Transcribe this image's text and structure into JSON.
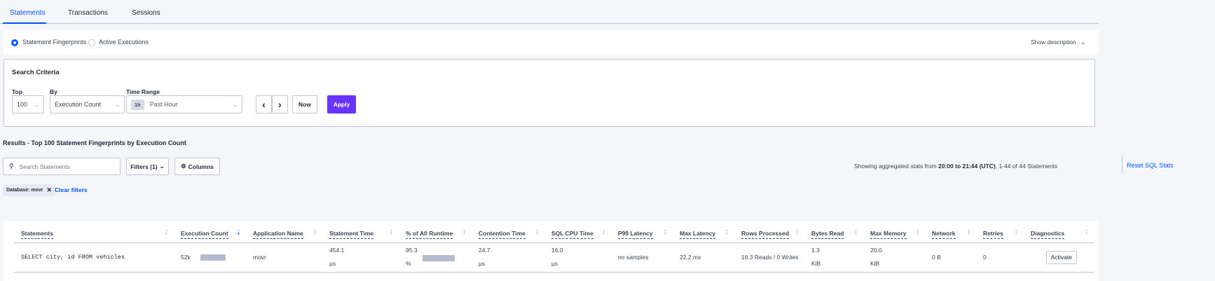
{
  "tabs": [
    {
      "label": "Statements",
      "active": true
    },
    {
      "label": "Transactions"
    },
    {
      "label": "Sessions"
    }
  ],
  "mode": {
    "options": [
      "Statement Fingerprints",
      "Active Executions"
    ],
    "selected": "Statement Fingerprints",
    "show_description": "Show description"
  },
  "criteria": {
    "title": "Search Criteria",
    "top_label": "Top",
    "top_value": "100",
    "by_label": "By",
    "by_value": "Execution Count",
    "time_label": "Time Range",
    "time_badge": "1h",
    "time_value": "Past Hour",
    "now": "Now",
    "apply": "Apply"
  },
  "results": {
    "title": "Results - Top 100 Statement Fingerprints by Execution Count",
    "search_placeholder": "Search Statements",
    "filters": "Filters (1)",
    "columns": "Columns",
    "stats_prefix": "Showing aggregated stats from ",
    "stats_range": "20:00 to 21:44 (UTC)",
    "stats_suffix": ", 1-44 of 44 Statements",
    "reset": "Reset SQL Stats",
    "chip": "Database: movr",
    "clear": "Clear filters"
  },
  "table": {
    "headers": [
      "Statements",
      "Execution Count",
      "Application Name",
      "Statement Time",
      "% of All Runtime",
      "Contention Time",
      "SQL CPU Time",
      "P99 Latency",
      "Max Latency",
      "Rows Processed",
      "Bytes Read",
      "Max Memory",
      "Network",
      "Retries",
      "Diagnostics"
    ],
    "sorted_column": "Execution Count",
    "rows": [
      {
        "statement": "SELECT city, id FROM vehicles",
        "exec_count": "52k",
        "exec_bar": 1.0,
        "app": "movr",
        "stmt_time": "454.1",
        "stmt_time_unit": "µs",
        "runtime_pct": "95.3",
        "runtime_unit": "%",
        "runtime_bar": 0.953,
        "contention": "24.7",
        "contention_unit": "µs",
        "cpu": "16.0",
        "cpu_unit": "µs",
        "p99": "no samples",
        "max_latency": "22.2 ms",
        "rows": "16.3 Reads / 0 Writes",
        "bytes_read": "1.3",
        "bytes_unit": "KiB",
        "max_mem": "20.0",
        "mem_unit": "KiB",
        "network": "0 B",
        "retries": "0",
        "diagnostics": "Activate"
      }
    ]
  }
}
